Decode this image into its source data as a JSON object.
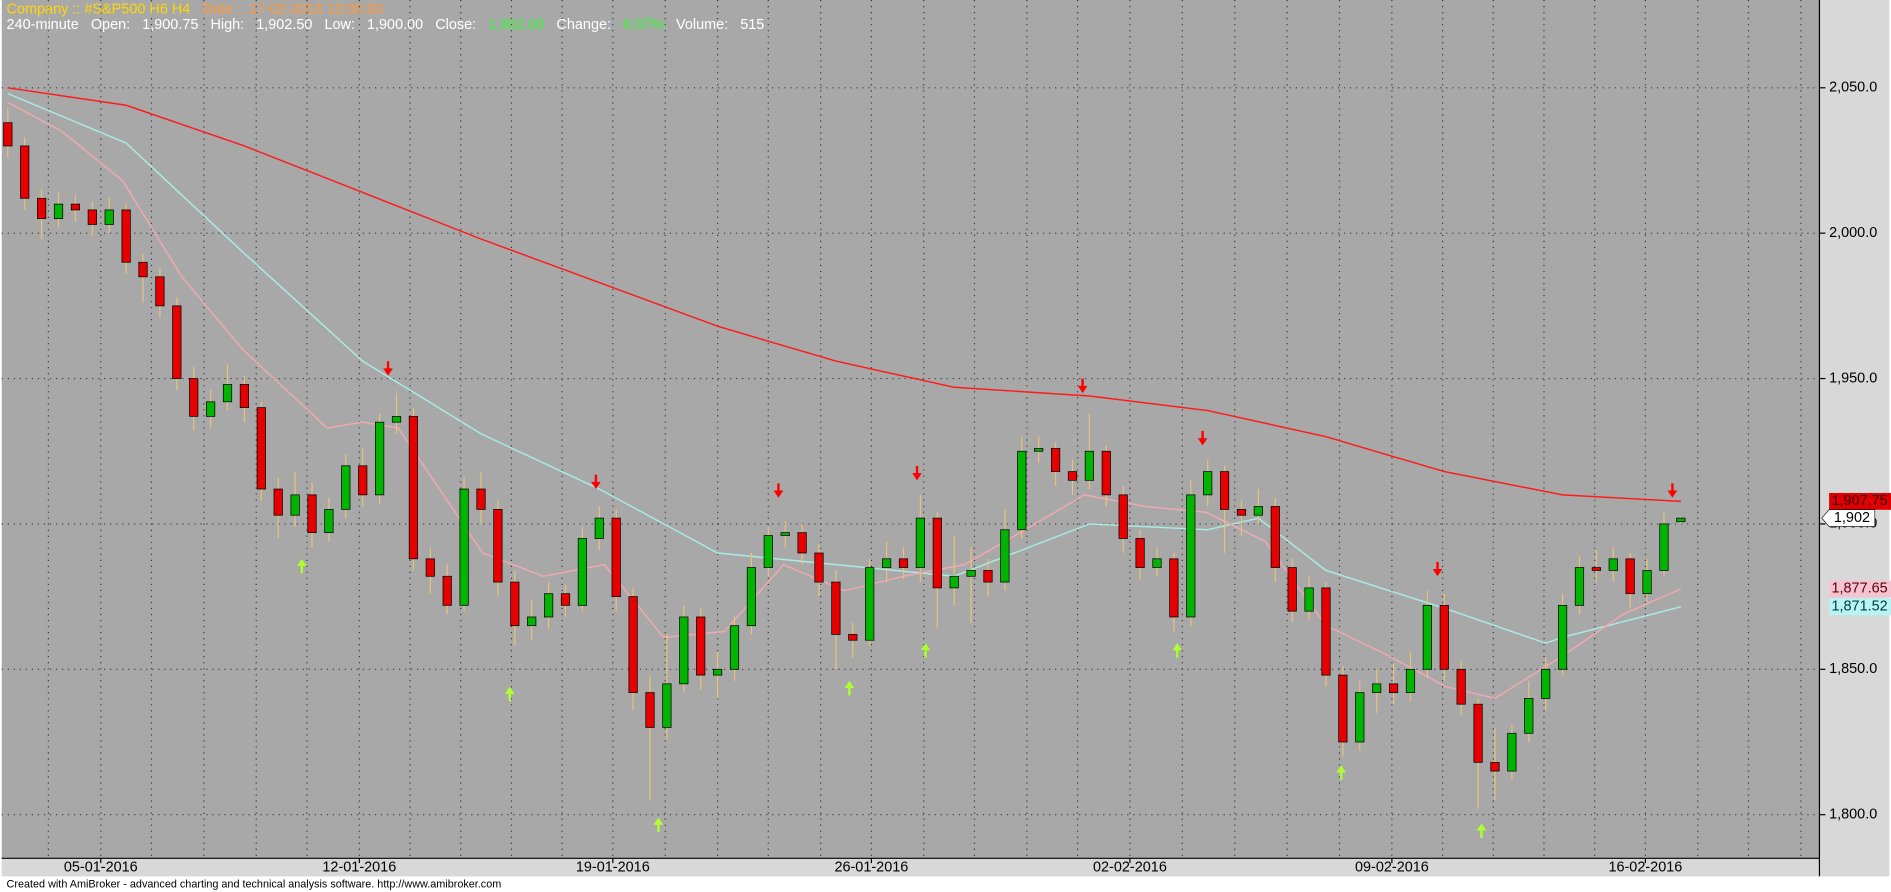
{
  "header": {
    "line1": [
      {
        "text": "Company :: #S&P500  H6  H4",
        "color": "#ffd700"
      },
      {
        "text": "Date :: 17-02-2016 13:00:00",
        "color": "#ff9a3c"
      }
    ],
    "line2": [
      {
        "text": "240-minute",
        "color": "#ffffff"
      },
      {
        "text": "Open:",
        "color": "#ffffff"
      },
      {
        "text": "1,900.75",
        "color": "#ffffff"
      },
      {
        "text": "High:",
        "color": "#ffffff"
      },
      {
        "text": "1,902.50",
        "color": "#ffffff"
      },
      {
        "text": "Low:",
        "color": "#ffffff"
      },
      {
        "text": "1,900.00",
        "color": "#ffffff"
      },
      {
        "text": "Close:",
        "color": "#ffffff"
      },
      {
        "text": "1,902.00",
        "color": "#33ff33"
      },
      {
        "text": "Change:",
        "color": "#ffffff"
      },
      {
        "text": "0.07%",
        "color": "#33ff33"
      },
      {
        "text": "Volume:",
        "color": "#ffffff"
      },
      {
        "text": "515",
        "color": "#ffffff"
      }
    ]
  },
  "footer": "Created with AmiBroker - advanced charting and technical analysis software. http://www.amibroker.com",
  "chart_data": {
    "type": "candlestick",
    "xlim": [
      -0.36,
      107.2
    ],
    "ylim": [
      1785,
      2080.2
    ],
    "xticks": [
      {
        "value": 5.5,
        "label": "05-01-2016"
      },
      {
        "value": 20.8,
        "label": "12-01-2016"
      },
      {
        "value": 35.8,
        "label": "19-01-2016"
      },
      {
        "value": 51.1,
        "label": "26-01-2016"
      },
      {
        "value": 66.4,
        "label": "02-02-2016"
      },
      {
        "value": 81.9,
        "label": "09-02-2016"
      },
      {
        "value": 96.9,
        "label": "16-02-2016"
      }
    ],
    "xgrid": [
      2.4,
      5.5,
      8.5,
      11.6,
      14.7,
      17.7,
      20.8,
      23.8,
      26.8,
      29.8,
      32.8,
      35.8,
      38.9,
      42.0,
      45.0,
      48.1,
      51.1,
      54.2,
      57.2,
      60.3,
      63.3,
      66.4,
      69.5,
      72.6,
      75.7,
      78.8,
      81.9,
      84.9,
      87.9,
      90.9,
      93.9,
      96.9,
      100.0,
      103.0,
      106.1
    ],
    "yticks": [
      {
        "value": 1800,
        "label": "1,800.0"
      },
      {
        "value": 1850,
        "label": "1,850.0"
      },
      {
        "value": 1900,
        "label": "1,900.0"
      },
      {
        "value": 1950,
        "label": "1,950.0"
      },
      {
        "value": 2000,
        "label": "2,000.0"
      },
      {
        "value": 2050,
        "label": "2,050.0"
      }
    ],
    "grid": true,
    "up_color": "#00b400",
    "down_color": "#e60000",
    "wick_color": "#e8c27a",
    "candles": {
      "open": [
        2038,
        2030,
        2012,
        2005,
        2010,
        2008,
        2003,
        2008,
        1990,
        1985,
        1975,
        1950,
        1937,
        1942,
        1948,
        1940,
        1912,
        1903,
        1910,
        1897,
        1905,
        1920,
        1910,
        1935,
        1937,
        1888,
        1882,
        1872,
        1912,
        1905,
        1880,
        1865,
        1868,
        1876,
        1872,
        1895,
        1902,
        1875,
        1842,
        1830,
        1845,
        1868,
        1848,
        1850,
        1865,
        1885,
        1896,
        1897,
        1890,
        1880,
        1862,
        1860,
        1885,
        1888,
        1885,
        1902,
        1878,
        1882,
        1884,
        1880,
        1898,
        1925,
        1926,
        1918,
        1915,
        1925,
        1910,
        1895,
        1885,
        1888,
        1868,
        1910,
        1918,
        1905,
        1903,
        1906,
        1885,
        1870,
        1878,
        1848,
        1825,
        1842,
        1845,
        1842,
        1850,
        1872,
        1850,
        1838,
        1818,
        1815,
        1828,
        1840,
        1850,
        1872,
        1885,
        1884,
        1888,
        1876,
        1884,
        1900.75
      ],
      "high": [
        2043,
        2033,
        2015,
        2014,
        2013,
        2011,
        2012,
        2010,
        1993,
        1988,
        1978,
        1954,
        1946,
        1955,
        1951,
        1942,
        1916,
        1918,
        1914,
        1909,
        1924,
        1926,
        1938,
        1945,
        1940,
        1892,
        1886,
        1916,
        1918,
        1908,
        1884,
        1874,
        1880,
        1879,
        1899,
        1906,
        1905,
        1878,
        1848,
        1862,
        1872,
        1871,
        1856,
        1868,
        1890,
        1899,
        1901,
        1900,
        1893,
        1884,
        1866,
        1888,
        1894,
        1892,
        1910,
        1904,
        1896,
        1892,
        1888,
        1905,
        1930,
        1930,
        1928,
        1922,
        1938,
        1927,
        1913,
        1898,
        1892,
        1890,
        1915,
        1922,
        1920,
        1908,
        1912,
        1909,
        1888,
        1882,
        1880,
        1851,
        1846,
        1850,
        1852,
        1856,
        1877,
        1876,
        1853,
        1840,
        1830,
        1831,
        1846,
        1854,
        1876,
        1889,
        1891,
        1892,
        1890,
        1888,
        1904,
        1902.5
      ],
      "low": [
        2026,
        2008,
        1998,
        2002,
        2004,
        1999,
        2000,
        1986,
        1976,
        1971,
        1946,
        1932,
        1933,
        1939,
        1935,
        1908,
        1895,
        1899,
        1892,
        1894,
        1902,
        1906,
        1907,
        1931,
        1884,
        1876,
        1869,
        1870,
        1900,
        1875,
        1858,
        1860,
        1864,
        1868,
        1870,
        1891,
        1870,
        1836,
        1805,
        1826,
        1842,
        1843,
        1840,
        1846,
        1862,
        1882,
        1892,
        1886,
        1875,
        1850,
        1854,
        1858,
        1880,
        1881,
        1880,
        1864,
        1872,
        1866,
        1875,
        1877,
        1895,
        1921,
        1913,
        1910,
        1912,
        1906,
        1890,
        1881,
        1882,
        1863,
        1865,
        1906,
        1890,
        1896,
        1900,
        1880,
        1866,
        1867,
        1844,
        1820,
        1822,
        1835,
        1838,
        1839,
        1847,
        1846,
        1834,
        1802,
        1805,
        1812,
        1825,
        1836,
        1848,
        1869,
        1880,
        1880,
        1871,
        1873,
        1882,
        1900
      ],
      "close": [
        2030,
        2012,
        2005,
        2010,
        2008,
        2003,
        2008,
        1990,
        1985,
        1975,
        1950,
        1937,
        1942,
        1948,
        1940,
        1912,
        1903,
        1910,
        1897,
        1905,
        1920,
        1910,
        1935,
        1937,
        1888,
        1882,
        1872,
        1912,
        1905,
        1880,
        1865,
        1868,
        1876,
        1872,
        1895,
        1902,
        1875,
        1842,
        1830,
        1845,
        1868,
        1848,
        1850,
        1865,
        1885,
        1896,
        1897,
        1890,
        1880,
        1862,
        1860,
        1885,
        1888,
        1885,
        1902,
        1878,
        1882,
        1884,
        1880,
        1898,
        1925,
        1926,
        1918,
        1915,
        1925,
        1910,
        1895,
        1885,
        1888,
        1868,
        1910,
        1918,
        1905,
        1903,
        1906,
        1885,
        1870,
        1878,
        1848,
        1825,
        1842,
        1845,
        1842,
        1850,
        1872,
        1850,
        1838,
        1818,
        1815,
        1828,
        1840,
        1850,
        1872,
        1885,
        1884,
        1888,
        1876,
        1884,
        1900,
        1902
      ]
    },
    "close_label": "1,902",
    "ma": [
      {
        "color": "#ff1a1a",
        "tag_color": "#e00000",
        "tag_text_color": "#3a0000",
        "last_label": "1,907.75",
        "x": [
          0,
          7,
          14,
          21,
          28,
          35,
          42,
          49,
          56,
          64,
          71,
          78,
          85,
          92,
          99
        ],
        "values": [
          2050,
          2044,
          2030,
          2014,
          1998,
          1983,
          1968,
          1956,
          1947,
          1944,
          1939,
          1930,
          1918,
          1910,
          1907.75
        ]
      },
      {
        "color": "#a8ece4",
        "tag_color": "#b8f4f4",
        "tag_text_color": "#003c46",
        "last_label": "1,871.52",
        "x": [
          0,
          7,
          14,
          21,
          28,
          35,
          42,
          49,
          56,
          64,
          71,
          74,
          78,
          85,
          91,
          92,
          99
        ],
        "values": [
          2048,
          2031,
          1993,
          1956,
          1931,
          1912,
          1890,
          1886,
          1882,
          1900,
          1898,
          1902,
          1884,
          1871,
          1859,
          1861,
          1871.52
        ]
      },
      {
        "color": "#f2a8b0",
        "tag_color": "#f6c4d0",
        "tag_text_color": "#5a0014",
        "last_label": "1,877.65",
        "x": [
          0,
          3.2,
          6.8,
          10.3,
          13.9,
          18.9,
          21,
          23.1,
          28.1,
          31.7,
          35.3,
          38.8,
          42.4,
          45.9,
          49.5,
          53,
          56.6,
          60.2,
          63.7,
          67.3,
          70.9,
          74.4,
          78,
          81.6,
          85.1,
          88,
          92.1,
          95.6,
          99
        ],
        "values": [
          2045,
          2035,
          2018,
          1985,
          1960,
          1933,
          1935,
          1933,
          1890,
          1882,
          1886,
          1861,
          1863,
          1886,
          1877,
          1882,
          1886,
          1898,
          1910,
          1906,
          1904,
          1894,
          1865,
          1855,
          1844,
          1840,
          1855,
          1869,
          1877.65
        ]
      }
    ],
    "sell": {
      "color": "#ff0000",
      "x": [
        22.5,
        34.8,
        45.6,
        53.8,
        63.6,
        70.7,
        84.6,
        98.5
      ],
      "values": [
        1951,
        1912,
        1909,
        1915,
        1945,
        1927,
        1882,
        1909
      ]
    },
    "buy": {
      "color": "#adff2f",
      "x": [
        17.4,
        29.7,
        38.5,
        49.8,
        54.3,
        69.2,
        78.9,
        87.2
      ],
      "values": [
        1888,
        1844,
        1799,
        1846,
        1859,
        1859,
        1817,
        1797
      ]
    }
  }
}
